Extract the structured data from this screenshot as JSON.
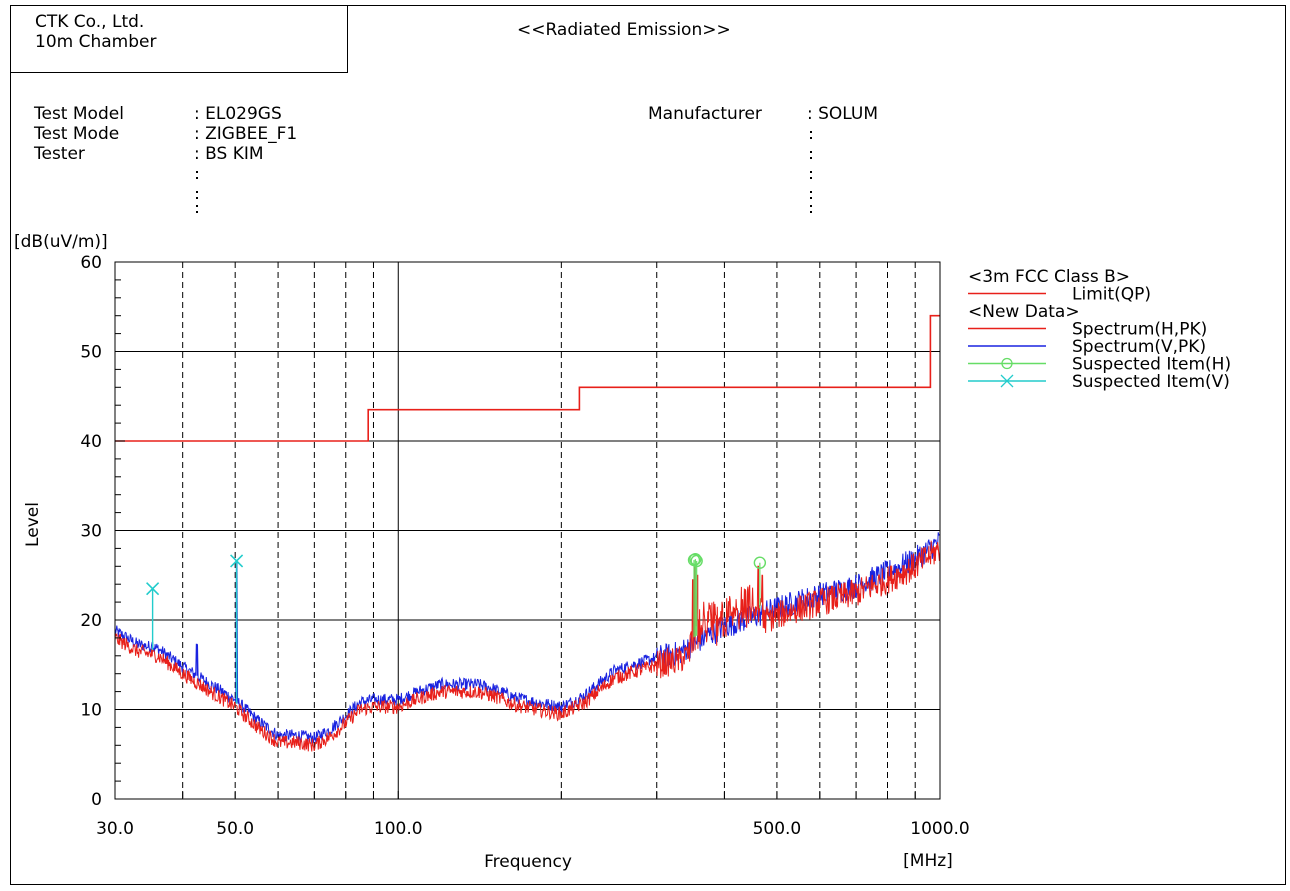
{
  "header": {
    "company": "CTK Co., Ltd.",
    "chamber": "10m Chamber",
    "report_title": "<<Radiated Emission>>"
  },
  "info": {
    "left": [
      {
        "label": "Test Model",
        "value": ": EL029GS"
      },
      {
        "label": "Test Mode",
        "value": ": ZIGBEE_F1"
      },
      {
        "label": "Tester",
        "value": ": BS KIM"
      }
    ],
    "right": [
      {
        "label": "Manufacturer",
        "value": ": SOLUM"
      }
    ]
  },
  "colors": {
    "limit": "#e8201a",
    "spectrum_h": "#e8201a",
    "spectrum_v": "#1a23e0",
    "suspected_h": "#66dd66",
    "suspected_v": "#22cccc",
    "grid": "#000000"
  },
  "chart_data": {
    "type": "line",
    "x_scale": "log",
    "xlim": [
      30,
      1000
    ],
    "ylim": [
      0,
      60
    ],
    "grid": true,
    "legend_position": "right",
    "ylabel_unit": "[dB(uV/m)]",
    "ylabel": "Level",
    "xlabel": "Frequency",
    "xlabel_unit": "[MHz]",
    "x_tick_labels": [
      {
        "value": 30,
        "label": "30.0"
      },
      {
        "value": 50,
        "label": "50.0"
      },
      {
        "value": 100,
        "label": "100.0"
      },
      {
        "value": 500,
        "label": "500.0"
      },
      {
        "value": 1000,
        "label": "1000.0"
      }
    ],
    "x_dashed_gridlines": [
      40,
      50,
      60,
      70,
      80,
      90,
      200,
      300,
      400,
      500,
      600,
      700,
      800,
      900
    ],
    "x_solid_gridlines": [
      100
    ],
    "y_tick_labels": [
      0,
      10,
      20,
      30,
      40,
      50,
      60
    ],
    "y_minor_step": 2,
    "legend": [
      {
        "kind": "header",
        "label": "<3m FCC Class B>"
      },
      {
        "kind": "line",
        "label": "Limit(QP)",
        "color_key": "limit"
      },
      {
        "kind": "header",
        "label": "<New Data>"
      },
      {
        "kind": "line",
        "label": "Spectrum(H,PK)",
        "color_key": "spectrum_h"
      },
      {
        "kind": "line",
        "label": "Spectrum(V,PK)",
        "color_key": "spectrum_v"
      },
      {
        "kind": "circle",
        "label": "Suspected Item(H)",
        "color_key": "suspected_h"
      },
      {
        "kind": "cross",
        "label": "Suspected Item(V)",
        "color_key": "suspected_v"
      }
    ],
    "limit_qp": {
      "segments": [
        {
          "from": 30,
          "to": 88,
          "level": 40.0
        },
        {
          "from": 88,
          "to": 216,
          "level": 43.5
        },
        {
          "from": 216,
          "to": 960,
          "level": 46.0
        },
        {
          "from": 960,
          "to": 1000,
          "level": 54.0
        }
      ]
    },
    "spectrum_envelope": [
      [
        30,
        18.5
      ],
      [
        33,
        17.0
      ],
      [
        36,
        16.5
      ],
      [
        40,
        14.5
      ],
      [
        45,
        12.5
      ],
      [
        50,
        10.8
      ],
      [
        55,
        8.5
      ],
      [
        60,
        6.8
      ],
      [
        65,
        6.8
      ],
      [
        70,
        6.5
      ],
      [
        75,
        7.5
      ],
      [
        80,
        9.0
      ],
      [
        85,
        10.5
      ],
      [
        90,
        10.8
      ],
      [
        100,
        10.8
      ],
      [
        110,
        11.8
      ],
      [
        120,
        12.5
      ],
      [
        130,
        12.5
      ],
      [
        140,
        12.5
      ],
      [
        150,
        12.0
      ],
      [
        165,
        11.0
      ],
      [
        180,
        10.5
      ],
      [
        200,
        10.0
      ],
      [
        220,
        11.2
      ],
      [
        250,
        14.0
      ],
      [
        300,
        15.5
      ],
      [
        330,
        16.0
      ],
      [
        350,
        17.0
      ],
      [
        400,
        19.0
      ],
      [
        450,
        20.0
      ],
      [
        500,
        21.0
      ],
      [
        550,
        21.8
      ],
      [
        600,
        22.5
      ],
      [
        700,
        23.5
      ],
      [
        800,
        25.0
      ],
      [
        900,
        26.5
      ],
      [
        1000,
        28.5
      ]
    ],
    "series_h_bumps": [
      {
        "from": 345,
        "to": 470,
        "add": 3.5
      }
    ],
    "series_h_peaks": [
      {
        "x": 350,
        "y": 24.5
      },
      {
        "x": 353,
        "y": 26.0
      },
      {
        "x": 357,
        "y": 25.0
      },
      {
        "x": 462,
        "y": 26.0
      },
      {
        "x": 470,
        "y": 25.0
      }
    ],
    "series_v_peaks": [
      {
        "x": 35.2,
        "y": 17.5
      },
      {
        "x": 42.5,
        "y": 17.3
      },
      {
        "x": 50.3,
        "y": 26.5
      }
    ],
    "suspected_h": [
      {
        "x": 351.5,
        "y": 26.7
      },
      {
        "x": 353.5,
        "y": 26.8
      },
      {
        "x": 355.5,
        "y": 26.6
      },
      {
        "x": 465.0,
        "y": 26.4
      }
    ],
    "suspected_v": [
      {
        "x": 35.2,
        "y": 23.5
      },
      {
        "x": 50.3,
        "y": 26.6
      }
    ]
  }
}
